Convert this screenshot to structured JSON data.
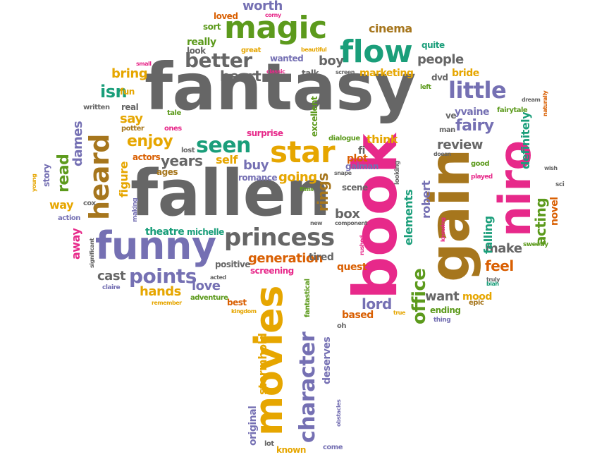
{
  "palette": {
    "gray": "#666666",
    "green": "#1a9e7a",
    "olive": "#5c9a1c",
    "gold": "#e6a600",
    "pink": "#e7298a",
    "purple": "#7570b3",
    "orange": "#d95f02",
    "brown": "#a6761d"
  },
  "words": [
    {
      "text": "fantasy",
      "color": "gray"
    },
    {
      "text": "fallen",
      "color": "gray"
    },
    {
      "text": "book",
      "color": "pink"
    },
    {
      "text": "gain",
      "color": "brown"
    },
    {
      "text": "niro",
      "color": "pink"
    },
    {
      "text": "funny",
      "color": "purple"
    },
    {
      "text": "movies",
      "color": "gold"
    },
    {
      "text": "magic",
      "color": "olive"
    },
    {
      "text": "flow",
      "color": "green"
    },
    {
      "text": "star",
      "color": "gold"
    },
    {
      "text": "princess",
      "color": "gray"
    },
    {
      "text": "heard",
      "color": "brown"
    },
    {
      "text": "character",
      "color": "purple"
    },
    {
      "text": "little",
      "color": "purple"
    },
    {
      "text": "better",
      "color": "gray"
    },
    {
      "text": "seen",
      "color": "green"
    },
    {
      "text": "office",
      "color": "olive"
    },
    {
      "text": "points",
      "color": "purple"
    },
    {
      "text": "read",
      "color": "olive"
    },
    {
      "text": "acting",
      "color": "olive"
    },
    {
      "text": "rings",
      "color": "brown"
    },
    {
      "text": "isn",
      "color": "green"
    },
    {
      "text": "enjoy",
      "color": "gold"
    },
    {
      "text": "heart",
      "color": "gray"
    },
    {
      "text": "fairy",
      "color": "purple"
    },
    {
      "text": "people",
      "color": "gray"
    },
    {
      "text": "generation",
      "color": "orange"
    },
    {
      "text": "worth",
      "color": "purple"
    },
    {
      "text": "cinema",
      "color": "brown"
    },
    {
      "text": "boy",
      "color": "gray"
    },
    {
      "text": "bring",
      "color": "gold"
    },
    {
      "text": "say",
      "color": "gold"
    },
    {
      "text": "years",
      "color": "gray"
    },
    {
      "text": "going",
      "color": "gold"
    },
    {
      "text": "hands",
      "color": "gold"
    },
    {
      "text": "love",
      "color": "purple"
    },
    {
      "text": "cast",
      "color": "gray"
    },
    {
      "text": "review",
      "color": "gray"
    },
    {
      "text": "feel",
      "color": "orange"
    },
    {
      "text": "make",
      "color": "gray"
    },
    {
      "text": "want",
      "color": "gray"
    },
    {
      "text": "lord",
      "color": "purple"
    },
    {
      "text": "box",
      "color": "gray"
    },
    {
      "text": "buy",
      "color": "purple"
    },
    {
      "text": "self",
      "color": "gold"
    },
    {
      "text": "think",
      "color": "gold"
    },
    {
      "text": "stormhold",
      "color": "gold"
    },
    {
      "text": "original",
      "color": "purple"
    },
    {
      "text": "deserves",
      "color": "purple"
    },
    {
      "text": "dames",
      "color": "purple"
    },
    {
      "text": "elements",
      "color": "green"
    },
    {
      "text": "robert",
      "color": "purple"
    },
    {
      "text": "falling",
      "color": "green"
    },
    {
      "text": "definitely",
      "color": "green"
    },
    {
      "text": "novel",
      "color": "orange"
    },
    {
      "text": "away",
      "color": "pink"
    },
    {
      "text": "way",
      "color": "gold"
    },
    {
      "text": "figure",
      "color": "gold"
    },
    {
      "text": "theatre",
      "color": "green"
    },
    {
      "text": "michelle",
      "color": "green"
    },
    {
      "text": "scene",
      "color": "gray"
    },
    {
      "text": "tired",
      "color": "gray"
    },
    {
      "text": "quest",
      "color": "orange"
    },
    {
      "text": "dvd",
      "color": "gray"
    },
    {
      "text": "bride",
      "color": "gold"
    },
    {
      "text": "marketing",
      "color": "gold"
    },
    {
      "text": "really",
      "color": "olive"
    },
    {
      "text": "look",
      "color": "gray"
    },
    {
      "text": "loved",
      "color": "orange"
    },
    {
      "text": "sort",
      "color": "olive"
    },
    {
      "text": "wanted",
      "color": "purple"
    },
    {
      "text": "talk",
      "color": "gray"
    },
    {
      "text": "plot",
      "color": "orange"
    },
    {
      "text": "quite",
      "color": "green"
    },
    {
      "text": "mood",
      "color": "gold"
    },
    {
      "text": "ending",
      "color": "olive"
    },
    {
      "text": "based",
      "color": "orange"
    },
    {
      "text": "positive",
      "color": "gray"
    },
    {
      "text": "screening",
      "color": "pink"
    },
    {
      "text": "romance",
      "color": "purple"
    },
    {
      "text": "ages",
      "color": "brown"
    },
    {
      "text": "actors",
      "color": "orange"
    },
    {
      "text": "real",
      "color": "gray"
    },
    {
      "text": "fun",
      "color": "gold"
    },
    {
      "text": "potter",
      "color": "brown"
    },
    {
      "text": "tale",
      "color": "olive"
    },
    {
      "text": "ones",
      "color": "pink"
    },
    {
      "text": "lost",
      "color": "gray"
    },
    {
      "text": "surprise",
      "color": "pink"
    },
    {
      "text": "dialogue",
      "color": "olive"
    },
    {
      "text": "excellent",
      "color": "olive"
    },
    {
      "text": "gaiman",
      "color": "purple"
    },
    {
      "text": "fi",
      "color": "gray"
    },
    {
      "text": "yvaine",
      "color": "purple"
    },
    {
      "text": "ve",
      "color": "gray"
    },
    {
      "text": "man",
      "color": "gray"
    },
    {
      "text": "fairytale",
      "color": "olive"
    },
    {
      "text": "dream",
      "color": "gray"
    },
    {
      "text": "naturally",
      "color": "orange"
    },
    {
      "text": "good",
      "color": "olive"
    },
    {
      "text": "played",
      "color": "pink"
    },
    {
      "text": "wish",
      "color": "gray"
    },
    {
      "text": "sci",
      "color": "gray"
    },
    {
      "text": "sweetly",
      "color": "olive"
    },
    {
      "text": "truly",
      "color": "gray"
    },
    {
      "text": "epic",
      "color": "brown"
    },
    {
      "text": "blah",
      "color": "green"
    },
    {
      "text": "thing",
      "color": "purple"
    },
    {
      "text": "true",
      "color": "gold"
    },
    {
      "text": "oh",
      "color": "gray"
    },
    {
      "text": "fantastical",
      "color": "olive"
    },
    {
      "text": "best",
      "color": "orange"
    },
    {
      "text": "kingdom",
      "color": "gold"
    },
    {
      "text": "obstacles",
      "color": "purple"
    },
    {
      "text": "known",
      "color": "gold"
    },
    {
      "text": "come",
      "color": "purple"
    },
    {
      "text": "lot",
      "color": "gray"
    },
    {
      "text": "adventure",
      "color": "olive"
    },
    {
      "text": "remember",
      "color": "gold"
    },
    {
      "text": "acted",
      "color": "gray"
    },
    {
      "text": "claire",
      "color": "purple"
    },
    {
      "text": "significant",
      "color": "gray"
    },
    {
      "text": "action",
      "color": "purple"
    },
    {
      "text": "cox",
      "color": "gray"
    },
    {
      "text": "making",
      "color": "purple"
    },
    {
      "text": "story",
      "color": "purple"
    },
    {
      "text": "young",
      "color": "gold"
    },
    {
      "text": "written",
      "color": "gray"
    },
    {
      "text": "small",
      "color": "pink"
    },
    {
      "text": "great",
      "color": "gold"
    },
    {
      "text": "corny",
      "color": "pink"
    },
    {
      "text": "beautiful",
      "color": "gold"
    },
    {
      "text": "classic",
      "color": "pink"
    },
    {
      "text": "screen",
      "color": "gray"
    },
    {
      "text": "left",
      "color": "olive"
    },
    {
      "text": "doesn",
      "color": "gray"
    },
    {
      "text": "snape",
      "color": "gray"
    },
    {
      "text": "films",
      "color": "olive"
    },
    {
      "text": "new",
      "color": "gray"
    },
    {
      "text": "component",
      "color": "gray"
    },
    {
      "text": "rushed",
      "color": "pink"
    },
    {
      "text": "knowing",
      "color": "pink"
    },
    {
      "text": "looking",
      "color": "gray"
    }
  ]
}
